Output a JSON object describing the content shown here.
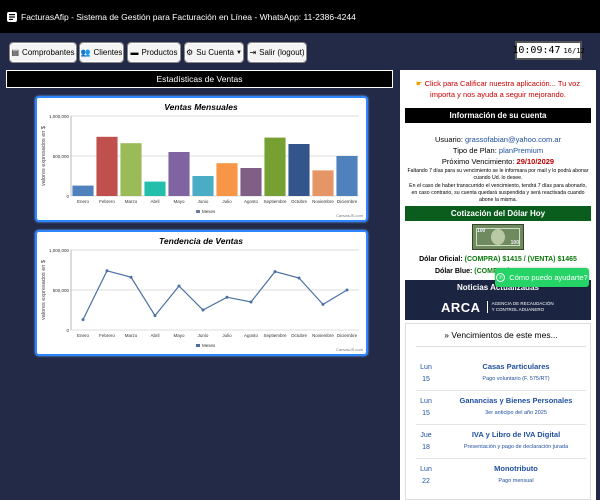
{
  "header": {
    "title": "FacturasAfip - Sistema de Gestión para Facturación en Línea - WhatsApp: 11-2386-4244"
  },
  "nav": {
    "comprobantes": "Comprobantes",
    "clientes": "Clientes",
    "productos": "Productos",
    "su_cuenta": "Su Cuenta",
    "salir": "Salir (logout)"
  },
  "clock": {
    "time": "10:09:47",
    "date": "16/12"
  },
  "stats": {
    "title": "Estadísticas de Ventas",
    "credit": "CanvasJS.com"
  },
  "chart_data": [
    {
      "type": "bar",
      "title": "Ventas Mensuales",
      "ylabel": "valores expresados en $",
      "legend": "Meses",
      "categories": [
        "Enero",
        "Febrero",
        "Marzo",
        "Abril",
        "Mayo",
        "Junio",
        "Julio",
        "Agosto",
        "Septiembre",
        "Octubre",
        "Noviembre",
        "Diciembre"
      ],
      "values": [
        130000,
        740000,
        660000,
        180000,
        550000,
        250000,
        410000,
        350000,
        730000,
        650000,
        320000,
        500000
      ],
      "colors": [
        "#4f81bc",
        "#c0504e",
        "#9bbb58",
        "#23bfaa",
        "#8064a1",
        "#4aacc5",
        "#f79647",
        "#7f6084",
        "#77a033",
        "#33558b",
        "#e59566",
        "#4f81bc"
      ],
      "ylim": [
        0,
        1000000
      ],
      "yticks": [
        "0",
        "500,000",
        "1,000,000"
      ]
    },
    {
      "type": "line",
      "title": "Tendencia de Ventas",
      "ylabel": "valores expresados en $",
      "legend": "Meses",
      "categories": [
        "Enero",
        "Febrero",
        "Marzo",
        "Abril",
        "Mayo",
        "Junio",
        "Julio",
        "Agosto",
        "Septiembre",
        "Octubre",
        "Noviembre",
        "Diciembre"
      ],
      "values": [
        130000,
        740000,
        660000,
        180000,
        550000,
        250000,
        410000,
        350000,
        730000,
        650000,
        320000,
        500000
      ],
      "ylim": [
        0,
        1000000
      ],
      "yticks": [
        "0",
        "500,000",
        "1,000,000"
      ]
    }
  ],
  "right": {
    "rate_text": "Click para Calificar nuestra aplicación... Tu voz importa y nos ayuda a seguir mejorando.",
    "account_title": "Información de su cuenta",
    "user_label": "Usuario:",
    "user_email": "grassofabian@yahoo.com.ar",
    "plan_label": "Tipo de Plan:",
    "plan_value": "planPremium",
    "due_label": "Próximo Vencimiento:",
    "due_value": "29/10/2029",
    "notice1": "Faltando 7 días para su vencimiento se le informara por mail y lo podrá abonar cuando Ud. lo desee.",
    "notice2": "En el caso de haber transcurrido el vencimiento, tendrá 7 días para abonarlo, en caso contrario, su cuenta quedará suspendida y será reactivada cuando abone la misma.",
    "dolar_title": "Cotización del Dólar Hoy",
    "dolar_oficial_label": "Dólar Oficial:",
    "dolar_oficial_value": "(COMPRA) $1415 / (VENTA) $1465",
    "dolar_blue_label": "Dólar Blue:",
    "dolar_blue_value": "(COMPRA)",
    "news_title": "Noticias Actualizadas",
    "arca_brand": "ARCA",
    "arca_sub1": "AGENCIA DE RECAUDACIÓN",
    "arca_sub2": "Y CONTROL ADUANERO",
    "venc_title": "» Vencimientos de este mes...",
    "venc": [
      {
        "dow": "Lun",
        "day": "15",
        "title": "Casas Particulares",
        "desc": "Pago voluntario (F. 575/RT)"
      },
      {
        "dow": "Lun",
        "day": "15",
        "title": "Ganancias y Bienes Personales",
        "desc": "3er anticipo del año 2025"
      },
      {
        "dow": "Jue",
        "day": "18",
        "title": "IVA y Libro de IVA Digital",
        "desc": "Presentación y pago de declaración jurada"
      },
      {
        "dow": "Lun",
        "day": "22",
        "title": "Monotributo",
        "desc": "Pago mensual"
      }
    ]
  },
  "whatsapp": {
    "label": "Cómo puedo ayudarte?"
  }
}
